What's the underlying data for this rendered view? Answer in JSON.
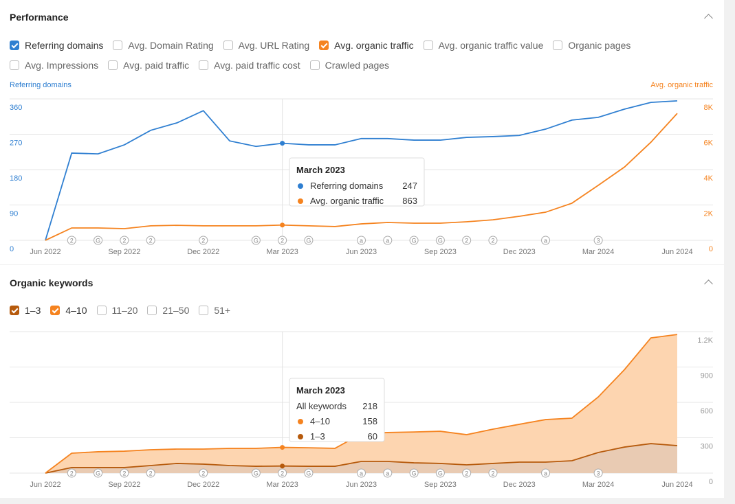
{
  "panels": [
    {
      "title": "Performance",
      "options": [
        [
          {
            "label": "Referring domains",
            "checked": true,
            "color": "#2f7fd1"
          },
          {
            "label": "Avg. Domain Rating",
            "checked": false
          },
          {
            "label": "Avg. URL Rating",
            "checked": false
          },
          {
            "label": "Avg. organic traffic",
            "checked": true,
            "color": "#f5831f"
          },
          {
            "label": "Avg. organic traffic value",
            "checked": false
          },
          {
            "label": "Organic pages",
            "checked": false
          }
        ],
        [
          {
            "label": "Avg. Impressions",
            "checked": false
          },
          {
            "label": "Avg. paid traffic",
            "checked": false
          },
          {
            "label": "Avg. paid traffic cost",
            "checked": false
          },
          {
            "label": "Crawled pages",
            "checked": false
          }
        ]
      ]
    },
    {
      "title": "Organic keywords",
      "options": [
        [
          {
            "label": "1–3",
            "checked": true,
            "color": "#b65a0c"
          },
          {
            "label": "4–10",
            "checked": true,
            "color": "#f5831f"
          },
          {
            "label": "11–20",
            "checked": false
          },
          {
            "label": "21–50",
            "checked": false
          },
          {
            "label": "51+",
            "checked": false
          }
        ]
      ]
    }
  ],
  "chart_data": [
    {
      "type": "line",
      "y_label": "Referring domains",
      "y2_label": "Avg. organic traffic",
      "categories": [
        "Jun 2022",
        null,
        null,
        "Sep 2022",
        null,
        null,
        "Dec 2022",
        null,
        null,
        "Mar 2023",
        null,
        null,
        "Jun 2023",
        null,
        null,
        "Sep 2023",
        null,
        null,
        "Dec 2023",
        null,
        null,
        "Mar 2024",
        null,
        null,
        "Jun 2024"
      ],
      "series": [
        {
          "name": "Referring domains",
          "color": "#2f7fd1",
          "values": [
            0,
            222,
            220,
            243,
            280,
            299,
            330,
            253,
            239,
            247,
            243,
            243,
            259,
            259,
            255,
            255,
            262,
            264,
            267,
            283,
            306,
            313,
            334,
            351,
            355
          ]
        },
        {
          "name": "Avg. organic traffic",
          "color": "#f5831f",
          "axis": "y2",
          "values": [
            0,
            700,
            700,
            660,
            820,
            850,
            820,
            820,
            820,
            863,
            820,
            780,
            930,
            1010,
            970,
            970,
            1050,
            1160,
            1360,
            1590,
            2100,
            3110,
            4150,
            5550,
            7180
          ]
        }
      ],
      "ylim": [
        0,
        360
      ],
      "yticks": [
        0,
        90,
        180,
        270,
        360
      ],
      "y2lim": [
        0,
        8000
      ],
      "y2ticks": [
        0,
        {
          "value": 2000,
          "label": "2K"
        },
        {
          "value": 4000,
          "label": "4K"
        },
        {
          "value": 6000,
          "label": "6K"
        },
        {
          "value": 8000,
          "label": "8K"
        }
      ],
      "grid": true,
      "yaxis_position": "left",
      "markers": [
        null,
        "2",
        "G",
        "2",
        "2",
        null,
        "2",
        null,
        "G",
        "2",
        "G",
        null,
        "a",
        "a",
        "G",
        "G",
        "2",
        "2",
        null,
        "a",
        null,
        "3",
        null,
        null,
        null
      ],
      "hover": 9,
      "tooltip": {
        "title": "March 2023",
        "rows": [
          {
            "name": "Referring domains",
            "value": 247,
            "color": "#2f7fd1"
          },
          {
            "name": "Avg. organic traffic",
            "value": 863,
            "color": "#f5831f"
          }
        ]
      }
    },
    {
      "type": "area",
      "stacked": true,
      "categories": [
        "Jun 2022",
        null,
        null,
        "Sep 2022",
        null,
        null,
        "Dec 2022",
        null,
        null,
        "Mar 2023",
        null,
        null,
        "Jun 2023",
        null,
        null,
        "Sep 2023",
        null,
        null,
        "Dec 2023",
        null,
        null,
        "Mar 2024",
        null,
        null,
        "Jun 2024"
      ],
      "series": [
        {
          "name": "1–3",
          "color": "#b65a0c",
          "fill": "#e9cbb3",
          "values": [
            0,
            47,
            47,
            47,
            64,
            82,
            76,
            64,
            58,
            60,
            58,
            58,
            99,
            99,
            87,
            82,
            70,
            82,
            93,
            93,
            105,
            175,
            221,
            250,
            233
          ]
        },
        {
          "name": "4–10",
          "color": "#f5831f",
          "fill": "#fdd5b0",
          "values": [
            0,
            122,
            134,
            139,
            134,
            122,
            128,
            146,
            152,
            158,
            157,
            152,
            233,
            245,
            262,
            273,
            256,
            291,
            321,
            361,
            361,
            471,
            658,
            897,
            943
          ]
        }
      ],
      "ylim": [
        0,
        1200
      ],
      "yticks": [
        0,
        300,
        600,
        900,
        {
          "value": 1200,
          "label": "1.2K"
        }
      ],
      "grid": true,
      "yaxis_position": "right",
      "markers": [
        null,
        "2",
        "G",
        "2",
        "2",
        null,
        "2",
        null,
        "G",
        "2",
        "G",
        null,
        "a",
        "a",
        "G",
        "G",
        "2",
        "2",
        null,
        "a",
        null,
        "3",
        null,
        null,
        null
      ],
      "hover": 9,
      "tooltip": {
        "title": "March 2023",
        "rows": [
          {
            "name": "All keywords",
            "value": 218
          },
          {
            "name": "4–10",
            "value": 158,
            "color": "#f5831f"
          },
          {
            "name": "1–3",
            "value": 60,
            "color": "#b65a0c"
          }
        ]
      }
    }
  ]
}
